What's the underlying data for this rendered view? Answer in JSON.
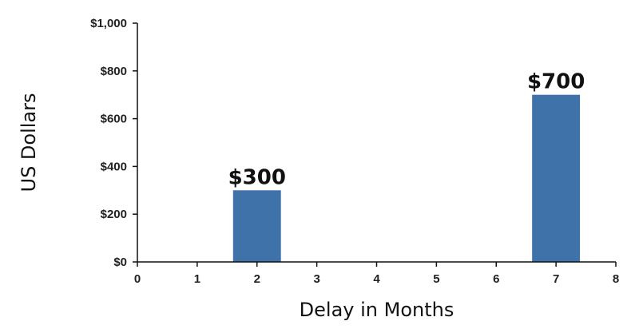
{
  "chart_data": {
    "type": "bar",
    "x": [
      2,
      7
    ],
    "values": [
      300,
      700
    ],
    "data_labels": [
      "$300",
      "$700"
    ],
    "xlabel": "Delay in Months",
    "ylabel": "US Dollars",
    "xlim": [
      0,
      8
    ],
    "ylim": [
      0,
      1000
    ],
    "x_ticks": [
      0,
      1,
      2,
      3,
      4,
      5,
      6,
      7,
      8
    ],
    "x_tick_labels": [
      "0",
      "1",
      "2",
      "3",
      "4",
      "5",
      "6",
      "7",
      "8"
    ],
    "y_ticks": [
      0,
      200,
      400,
      600,
      800,
      1000
    ],
    "y_tick_labels": [
      "$0",
      "$200",
      "$400",
      "$600",
      "$800",
      "$1,000"
    ],
    "bar_width": 0.8,
    "grid": false,
    "colors": {
      "bar": "#3f72a8",
      "axis": "#111111"
    }
  }
}
